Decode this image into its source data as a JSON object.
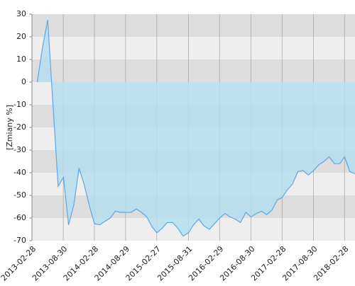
{
  "chart_data": {
    "type": "area",
    "y_label": "[Zmiany %]",
    "x": [
      "2013-03-31",
      "2013-04-30",
      "2013-05-31",
      "2013-06-30",
      "2013-07-31",
      "2013-08-31",
      "2013-09-30",
      "2013-10-31",
      "2013-11-30",
      "2013-12-31",
      "2014-01-31",
      "2014-02-28",
      "2014-03-31",
      "2014-04-30",
      "2014-05-31",
      "2014-06-30",
      "2014-07-31",
      "2014-08-31",
      "2014-09-30",
      "2014-10-31",
      "2014-11-30",
      "2014-12-31",
      "2015-01-31",
      "2015-02-28",
      "2015-03-31",
      "2015-04-30",
      "2015-05-31",
      "2015-06-30",
      "2015-07-31",
      "2015-08-31",
      "2015-09-30",
      "2015-10-31",
      "2015-11-30",
      "2015-12-31",
      "2016-01-31",
      "2016-02-29",
      "2016-03-31",
      "2016-04-30",
      "2016-05-31",
      "2016-06-30",
      "2016-07-31",
      "2016-08-31",
      "2016-09-30",
      "2016-10-31",
      "2016-11-30",
      "2016-12-31",
      "2017-01-31",
      "2017-02-28",
      "2017-03-31",
      "2017-04-30",
      "2017-05-31",
      "2017-06-30",
      "2017-07-31",
      "2017-08-31",
      "2017-09-30",
      "2017-10-31",
      "2017-11-30",
      "2017-12-31",
      "2018-01-31",
      "2018-02-28",
      "2018-03-31",
      "2018-04-30"
    ],
    "series": [
      {
        "name": "Zmiany",
        "color": "#5aa9e6",
        "fill": "#b5ddef",
        "values": [
          0,
          15,
          27.5,
          -9,
          -46,
          -42,
          -63,
          -54,
          -38,
          -45.5,
          -55,
          -62.5,
          -63,
          -61.5,
          -60,
          -57,
          -57.5,
          -57.5,
          -57.5,
          -56,
          -57.5,
          -59.5,
          -64,
          -66.5,
          -64.5,
          -62,
          -62,
          -64.5,
          -68,
          -66.5,
          -63,
          -60.5,
          -63.5,
          -65,
          -62.5,
          -60,
          -58,
          -59.5,
          -60.5,
          -62,
          -57.5,
          -59.5,
          -58,
          -57,
          -58.5,
          -56.5,
          -52,
          -51,
          -47.5,
          -45,
          -39.5,
          -39,
          -41,
          -39,
          -36.5,
          -35,
          -33,
          -36,
          -36,
          -33,
          -39.5,
          -40.5
        ]
      }
    ],
    "xlim": [
      "2013-02-28",
      "2018-04-30"
    ],
    "xticks": [
      "2013-02-28",
      "2013-08-30",
      "2014-02-28",
      "2014-08-29",
      "2015-02-27",
      "2015-08-31",
      "2016-02-29",
      "2016-08-30",
      "2017-02-28",
      "2017-08-30",
      "2018-02-28"
    ],
    "ylim": [
      -70,
      30
    ],
    "yticks": [
      -70,
      -60,
      -50,
      -40,
      -30,
      -20,
      -10,
      0,
      10,
      20,
      30
    ],
    "band_colors": [
      "#eeeeee",
      "#dddddd"
    ]
  }
}
